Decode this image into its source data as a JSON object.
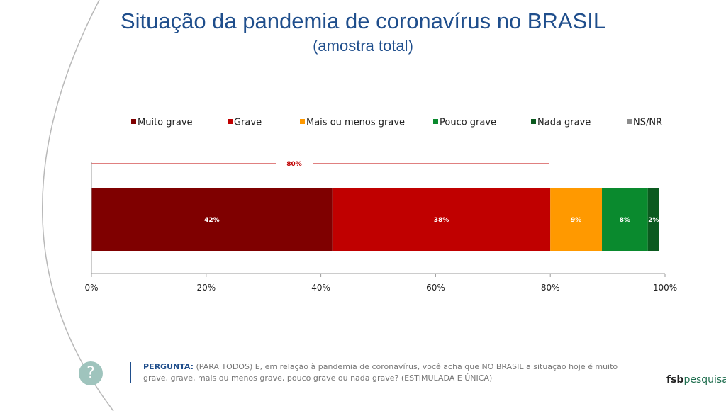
{
  "colors": {
    "muito_grave": "#7f0000",
    "grave": "#c00000",
    "mais_ou_menos": "#ff9900",
    "pouco_grave": "#0a8a2e",
    "nada_grave": "#0b5a1f",
    "ns_nr": "#8c8c8c",
    "sum_line": "#c00000"
  },
  "chart_data": {
    "type": "bar",
    "orientation": "horizontal",
    "stacked": true,
    "title": "Situação da pandemia de coronavírus no BRASIL",
    "subtitle": "(amostra total)",
    "x_ticks": [
      "0%",
      "20%",
      "40%",
      "60%",
      "80%",
      "100%"
    ],
    "xlim": [
      0,
      100
    ],
    "legend_position": "top",
    "series": [
      {
        "name": "Muito grave",
        "value": 42,
        "label": "42%",
        "color_key": "muito_grave"
      },
      {
        "name": "Grave",
        "value": 38,
        "label": "38%",
        "color_key": "grave"
      },
      {
        "name": "Mais ou menos grave",
        "value": 9,
        "label": "9%",
        "color_key": "mais_ou_menos"
      },
      {
        "name": "Pouco grave",
        "value": 8,
        "label": "8%",
        "color_key": "pouco_grave"
      },
      {
        "name": "Nada grave",
        "value": 2,
        "label": "2%",
        "color_key": "nada_grave"
      },
      {
        "name": "NS/NR",
        "value": 0,
        "label": "",
        "color_key": "ns_nr"
      }
    ],
    "sum_annotation": {
      "value": 80,
      "label": "80%"
    }
  },
  "question": {
    "label": "PERGUNTA:",
    "text": "(PARA TODOS) E, em relação à pandemia de coronavírus, você acha que NO BRASIL a situação hoje é muito grave, grave, mais ou menos grave, pouco grave ou nada grave? (ESTIMULADA E ÚNICA)",
    "icon": "question-mark-icon",
    "icon_glyph": "?"
  },
  "logo": {
    "part1": "fsb",
    "part2": "pesquisa"
  }
}
